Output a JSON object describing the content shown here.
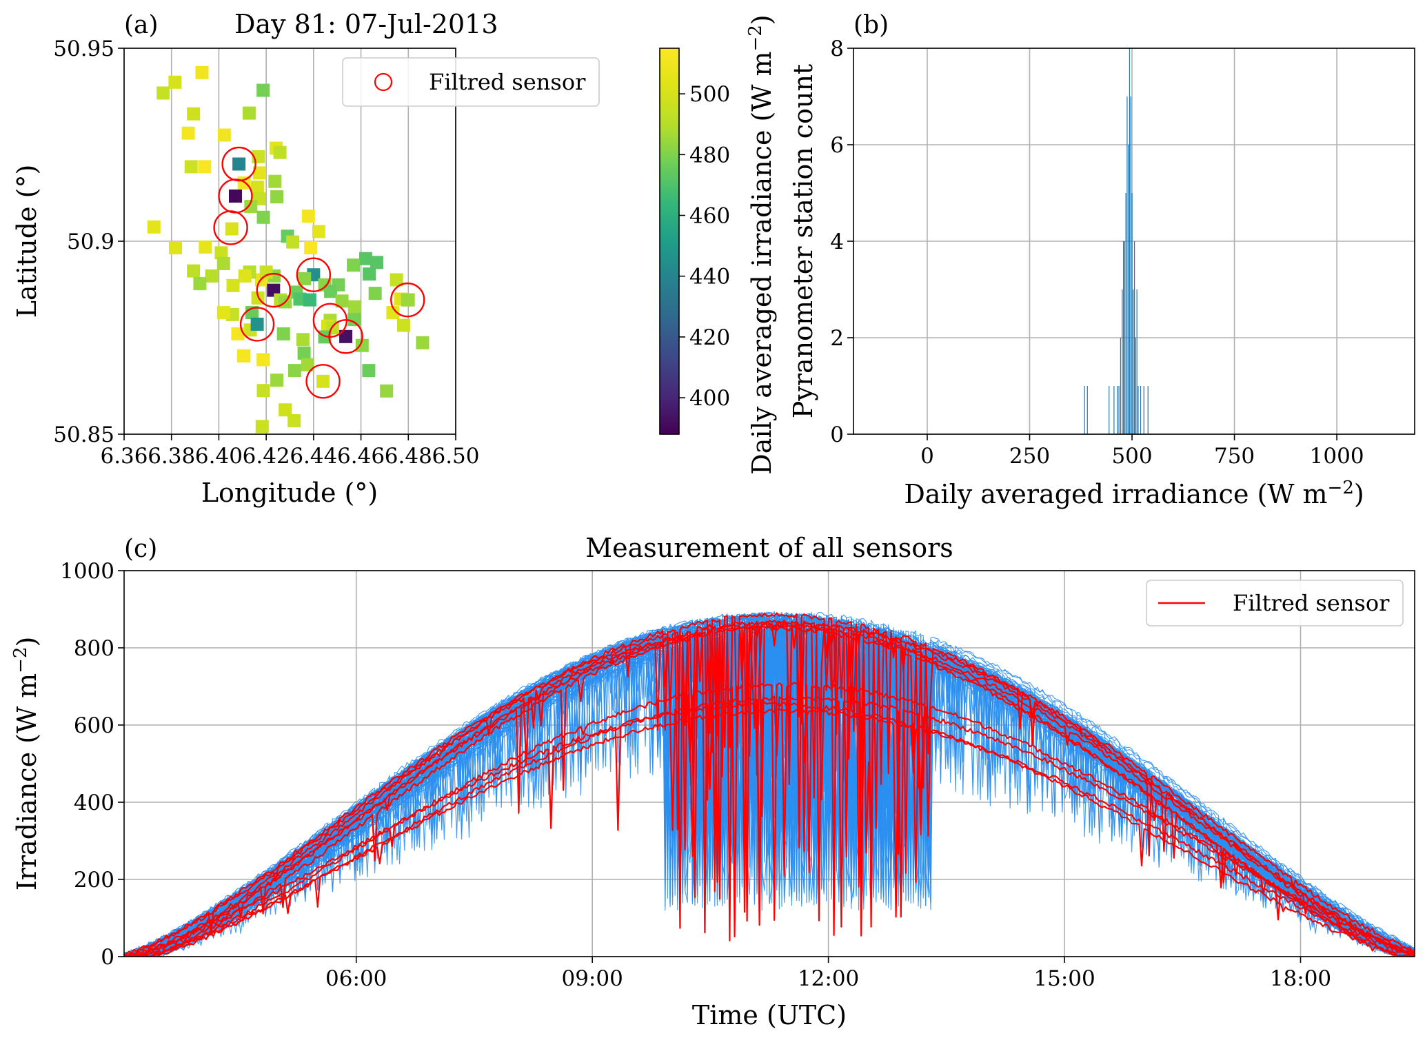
{
  "chart_data": [
    {
      "id": "a",
      "type": "scatter",
      "panel_label": "(a)",
      "title": "Day 81: 07-Jul-2013",
      "xlabel": "Longitude (°)",
      "ylabel": "Latitude (°)",
      "xlim": [
        6.36,
        6.5
      ],
      "ylim": [
        50.85,
        50.95
      ],
      "x_ticks": [
        "6.36",
        "6.38",
        "6.40",
        "6.42",
        "6.44",
        "6.46",
        "6.48",
        "6.50"
      ],
      "y_ticks": [
        "50.85",
        "50.9",
        "50.95"
      ],
      "grid": true,
      "legend": {
        "label": "Filtred sensor",
        "placement": "top-right"
      },
      "colorbar": {
        "label": "Daily averaged irradiance (W m",
        "label_sup": "−2",
        "label_close": ")",
        "colormap": "viridis",
        "range": [
          388,
          515
        ],
        "ticks": [
          "400",
          "420",
          "440",
          "460",
          "480",
          "500"
        ]
      },
      "points": [
        {
          "lon": 6.3765,
          "lat": 50.9384,
          "irr": 495
        },
        {
          "lon": 6.3815,
          "lat": 50.9412,
          "irr": 500
        },
        {
          "lon": 6.3929,
          "lat": 50.9437,
          "irr": 510
        },
        {
          "lon": 6.3893,
          "lat": 50.933,
          "irr": 498
        },
        {
          "lon": 6.3871,
          "lat": 50.928,
          "irr": 512
        },
        {
          "lon": 6.3883,
          "lat": 50.9193,
          "irr": 497
        },
        {
          "lon": 6.394,
          "lat": 50.9193,
          "irr": 513
        },
        {
          "lon": 6.4023,
          "lat": 50.9275,
          "irr": 510
        },
        {
          "lon": 6.4187,
          "lat": 50.9391,
          "irr": 478
        },
        {
          "lon": 6.4128,
          "lat": 50.9332,
          "irr": 488
        },
        {
          "lon": 6.4167,
          "lat": 50.9219,
          "irr": 497
        },
        {
          "lon": 6.4242,
          "lat": 50.9241,
          "irr": 505
        },
        {
          "lon": 6.4258,
          "lat": 50.923,
          "irr": 492
        },
        {
          "lon": 6.4172,
          "lat": 50.9177,
          "irr": 505
        },
        {
          "lon": 6.4085,
          "lat": 50.92,
          "irr": 440
        },
        {
          "lon": 6.407,
          "lat": 50.9117,
          "irr": 390
        },
        {
          "lon": 6.4107,
          "lat": 50.9151,
          "irr": 512
        },
        {
          "lon": 6.4163,
          "lat": 50.914,
          "irr": 500
        },
        {
          "lon": 6.4237,
          "lat": 50.9155,
          "irr": 486
        },
        {
          "lon": 6.4245,
          "lat": 50.9115,
          "irr": 483
        },
        {
          "lon": 6.417,
          "lat": 50.911,
          "irr": 495
        },
        {
          "lon": 6.4135,
          "lat": 50.909,
          "irr": 485
        },
        {
          "lon": 6.4188,
          "lat": 50.9062,
          "irr": 480
        },
        {
          "lon": 6.4055,
          "lat": 50.9032,
          "irr": 501
        },
        {
          "lon": 6.3726,
          "lat": 50.9037,
          "irr": 505
        },
        {
          "lon": 6.3817,
          "lat": 50.8983,
          "irr": 503
        },
        {
          "lon": 6.3943,
          "lat": 50.8985,
          "irr": 506
        },
        {
          "lon": 6.401,
          "lat": 50.897,
          "irr": 496
        },
        {
          "lon": 6.402,
          "lat": 50.8942,
          "irr": 488
        },
        {
          "lon": 6.429,
          "lat": 50.9013,
          "irr": 475
        },
        {
          "lon": 6.4312,
          "lat": 50.8998,
          "irr": 494
        },
        {
          "lon": 6.4378,
          "lat": 50.9065,
          "irr": 511
        },
        {
          "lon": 6.4422,
          "lat": 50.9025,
          "irr": 505
        },
        {
          "lon": 6.4388,
          "lat": 50.8983,
          "irr": 513
        },
        {
          "lon": 6.44,
          "lat": 50.8913,
          "irr": 445
        },
        {
          "lon": 6.462,
          "lat": 50.8955,
          "irr": 472
        },
        {
          "lon": 6.4667,
          "lat": 50.8945,
          "irr": 472
        },
        {
          "lon": 6.4635,
          "lat": 50.8915,
          "irr": 472
        },
        {
          "lon": 6.4568,
          "lat": 50.8938,
          "irr": 480
        },
        {
          "lon": 6.4505,
          "lat": 50.8887,
          "irr": 478
        },
        {
          "lon": 6.4362,
          "lat": 50.8903,
          "irr": 482
        },
        {
          "lon": 6.4327,
          "lat": 50.8868,
          "irr": 477
        },
        {
          "lon": 6.4233,
          "lat": 50.891,
          "irr": 483
        },
        {
          "lon": 6.418,
          "lat": 50.89,
          "irr": 508
        },
        {
          "lon": 6.42,
          "lat": 50.892,
          "irr": 496
        },
        {
          "lon": 6.413,
          "lat": 50.892,
          "irr": 490
        },
        {
          "lon": 6.411,
          "lat": 50.891,
          "irr": 503
        },
        {
          "lon": 6.406,
          "lat": 50.8885,
          "irr": 500
        },
        {
          "lon": 6.397,
          "lat": 50.891,
          "irr": 490
        },
        {
          "lon": 6.3893,
          "lat": 50.8923,
          "irr": 492
        },
        {
          "lon": 6.392,
          "lat": 50.889,
          "irr": 485
        },
        {
          "lon": 6.4231,
          "lat": 50.8873,
          "irr": 392
        },
        {
          "lon": 6.4165,
          "lat": 50.8853,
          "irr": 498
        },
        {
          "lon": 6.426,
          "lat": 50.8848,
          "irr": 492
        },
        {
          "lon": 6.428,
          "lat": 50.8843,
          "irr": 484
        },
        {
          "lon": 6.4342,
          "lat": 50.885,
          "irr": 470
        },
        {
          "lon": 6.4384,
          "lat": 50.8848,
          "irr": 465
        },
        {
          "lon": 6.4447,
          "lat": 50.8887,
          "irr": 482
        },
        {
          "lon": 6.4472,
          "lat": 50.887,
          "irr": 476
        },
        {
          "lon": 6.452,
          "lat": 50.8845,
          "irr": 484
        },
        {
          "lon": 6.4573,
          "lat": 50.883,
          "irr": 486
        },
        {
          "lon": 6.466,
          "lat": 50.8865,
          "irr": 480
        },
        {
          "lon": 6.475,
          "lat": 50.89,
          "irr": 495
        },
        {
          "lon": 6.4768,
          "lat": 50.885,
          "irr": 503
        },
        {
          "lon": 6.48,
          "lat": 50.8848,
          "irr": 488
        },
        {
          "lon": 6.4735,
          "lat": 50.8815,
          "irr": 505
        },
        {
          "lon": 6.478,
          "lat": 50.8782,
          "irr": 497
        },
        {
          "lon": 6.486,
          "lat": 50.8737,
          "irr": 485
        },
        {
          "lon": 6.4708,
          "lat": 50.8612,
          "irr": 484
        },
        {
          "lon": 6.4572,
          "lat": 50.8797,
          "irr": 478
        },
        {
          "lon": 6.4536,
          "lat": 50.8753,
          "irr": 393
        },
        {
          "lon": 6.447,
          "lat": 50.8795,
          "irr": 488
        },
        {
          "lon": 6.446,
          "lat": 50.878,
          "irr": 500
        },
        {
          "lon": 6.448,
          "lat": 50.8775,
          "irr": 493
        },
        {
          "lon": 6.4447,
          "lat": 50.8752,
          "irr": 475
        },
        {
          "lon": 6.4605,
          "lat": 50.873,
          "irr": 482
        },
        {
          "lon": 6.4633,
          "lat": 50.8665,
          "irr": 476
        },
        {
          "lon": 6.444,
          "lat": 50.8637,
          "irr": 500
        },
        {
          "lon": 6.4355,
          "lat": 50.8745,
          "irr": 488
        },
        {
          "lon": 6.436,
          "lat": 50.871,
          "irr": 478
        },
        {
          "lon": 6.4375,
          "lat": 50.868,
          "irr": 486
        },
        {
          "lon": 6.432,
          "lat": 50.8665,
          "irr": 482
        },
        {
          "lon": 6.4245,
          "lat": 50.864,
          "irr": 485
        },
        {
          "lon": 6.4188,
          "lat": 50.8613,
          "irr": 495
        },
        {
          "lon": 6.428,
          "lat": 50.8563,
          "irr": 498
        },
        {
          "lon": 6.4318,
          "lat": 50.8535,
          "irr": 496
        },
        {
          "lon": 6.4183,
          "lat": 50.852,
          "irr": 496
        },
        {
          "lon": 6.4273,
          "lat": 50.876,
          "irr": 480
        },
        {
          "lon": 6.4187,
          "lat": 50.8693,
          "irr": 512
        },
        {
          "lon": 6.4133,
          "lat": 50.877,
          "irr": 497
        },
        {
          "lon": 6.414,
          "lat": 50.8815,
          "irr": 475
        },
        {
          "lon": 6.4162,
          "lat": 50.8785,
          "irr": 446
        },
        {
          "lon": 6.408,
          "lat": 50.876,
          "irr": 512
        },
        {
          "lon": 6.4058,
          "lat": 50.881,
          "irr": 495
        },
        {
          "lon": 6.402,
          "lat": 50.8815,
          "irr": 505
        },
        {
          "lon": 6.4105,
          "lat": 50.8703,
          "irr": 512
        },
        {
          "lon": 6.4797,
          "lat": 50.8848,
          "irr": 485
        }
      ],
      "filtered": [
        {
          "lon": 6.4085,
          "lat": 50.92
        },
        {
          "lon": 6.407,
          "lat": 50.9117
        },
        {
          "lon": 6.405,
          "lat": 50.9035
        },
        {
          "lon": 6.4231,
          "lat": 50.8873
        },
        {
          "lon": 6.44,
          "lat": 50.8913
        },
        {
          "lon": 6.4162,
          "lat": 50.8785
        },
        {
          "lon": 6.447,
          "lat": 50.8795
        },
        {
          "lon": 6.4536,
          "lat": 50.8753
        },
        {
          "lon": 6.444,
          "lat": 50.8637
        },
        {
          "lon": 6.4797,
          "lat": 50.8848
        }
      ]
    },
    {
      "id": "b",
      "type": "bar",
      "panel_label": "(b)",
      "xlabel": "Daily averaged irradiance (W m",
      "xlabel_sup": "−2",
      "xlabel_close": ")",
      "ylabel": "Pyranometer station count",
      "xlim": [
        -180,
        1190
      ],
      "ylim": [
        0,
        8
      ],
      "x_ticks": [
        0,
        250,
        500,
        750,
        1000
      ],
      "y_ticks": [
        0,
        2,
        4,
        6,
        8
      ],
      "grid": true,
      "bin_width": 3,
      "bins": [
        {
          "x": 383,
          "count": 1
        },
        {
          "x": 390,
          "count": 1
        },
        {
          "x": 443,
          "count": 1
        },
        {
          "x": 455,
          "count": 1
        },
        {
          "x": 463,
          "count": 1
        },
        {
          "x": 467,
          "count": 1
        },
        {
          "x": 471,
          "count": 2
        },
        {
          "x": 475,
          "count": 3
        },
        {
          "x": 478,
          "count": 4
        },
        {
          "x": 481,
          "count": 4
        },
        {
          "x": 484,
          "count": 5
        },
        {
          "x": 487,
          "count": 7
        },
        {
          "x": 490,
          "count": 6
        },
        {
          "x": 493,
          "count": 8
        },
        {
          "x": 496,
          "count": 7
        },
        {
          "x": 499,
          "count": 5
        },
        {
          "x": 502,
          "count": 3
        },
        {
          "x": 505,
          "count": 4
        },
        {
          "x": 508,
          "count": 2
        },
        {
          "x": 511,
          "count": 3
        },
        {
          "x": 514,
          "count": 1
        },
        {
          "x": 520,
          "count": 1
        },
        {
          "x": 528,
          "count": 1
        },
        {
          "x": 538,
          "count": 1
        }
      ]
    },
    {
      "id": "c",
      "type": "line",
      "panel_label": "(c)",
      "title": "Measurement of all sensors",
      "xlabel": "Time (UTC)",
      "ylabel": "Irradiance (W m",
      "ylabel_sup": "−2",
      "ylabel_close": ")",
      "xlim": [
        3.05,
        19.45
      ],
      "ylim": [
        0,
        1000
      ],
      "x_ticks": [
        {
          "v": 6,
          "label": "06:00"
        },
        {
          "v": 9,
          "label": "09:00"
        },
        {
          "v": 12,
          "label": "12:00"
        },
        {
          "v": 15,
          "label": "15:00"
        },
        {
          "v": 18,
          "label": "18:00"
        }
      ],
      "y_ticks": [
        0,
        200,
        400,
        600,
        800,
        1000
      ],
      "grid": true,
      "legend": {
        "label": "Filtred sensor",
        "placement": "top-right"
      },
      "envelope": {
        "peak_time": 11.35,
        "half_width": 8.2,
        "peak": 870
      },
      "series_count": 97,
      "filtered_count": 10
    }
  ],
  "colors": {
    "all_sensors": "#2a8ff0",
    "filtered": "#ff0000",
    "histogram": "#1f77b4",
    "grid": "#b0b0b0"
  }
}
